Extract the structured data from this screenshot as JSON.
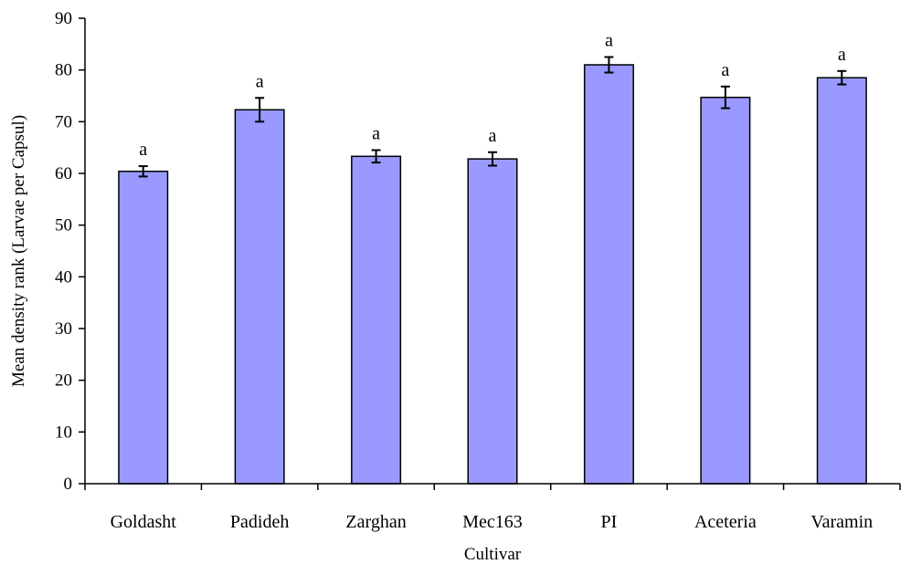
{
  "chart_data": {
    "type": "bar",
    "categories": [
      "Goldasht",
      "Padideh",
      "Zarghan",
      "Mec163",
      "PI",
      "Aceteria",
      "Varamin"
    ],
    "values": [
      60.4,
      72.3,
      63.3,
      62.8,
      81.0,
      74.7,
      78.5
    ],
    "errors": [
      1.0,
      2.3,
      1.2,
      1.3,
      1.5,
      2.1,
      1.3
    ],
    "significance": [
      "a",
      "a",
      "a",
      "a",
      "a",
      "a",
      "a"
    ],
    "xlabel": "Cultivar",
    "ylabel": "Mean density rank (Larvae per Capsul)",
    "ylim": [
      0,
      90
    ],
    "yticks": [
      0,
      10,
      20,
      30,
      40,
      50,
      60,
      70,
      80,
      90
    ],
    "grid": false,
    "bar_color": "#9999ff",
    "bar_edge_color": "#000000"
  }
}
